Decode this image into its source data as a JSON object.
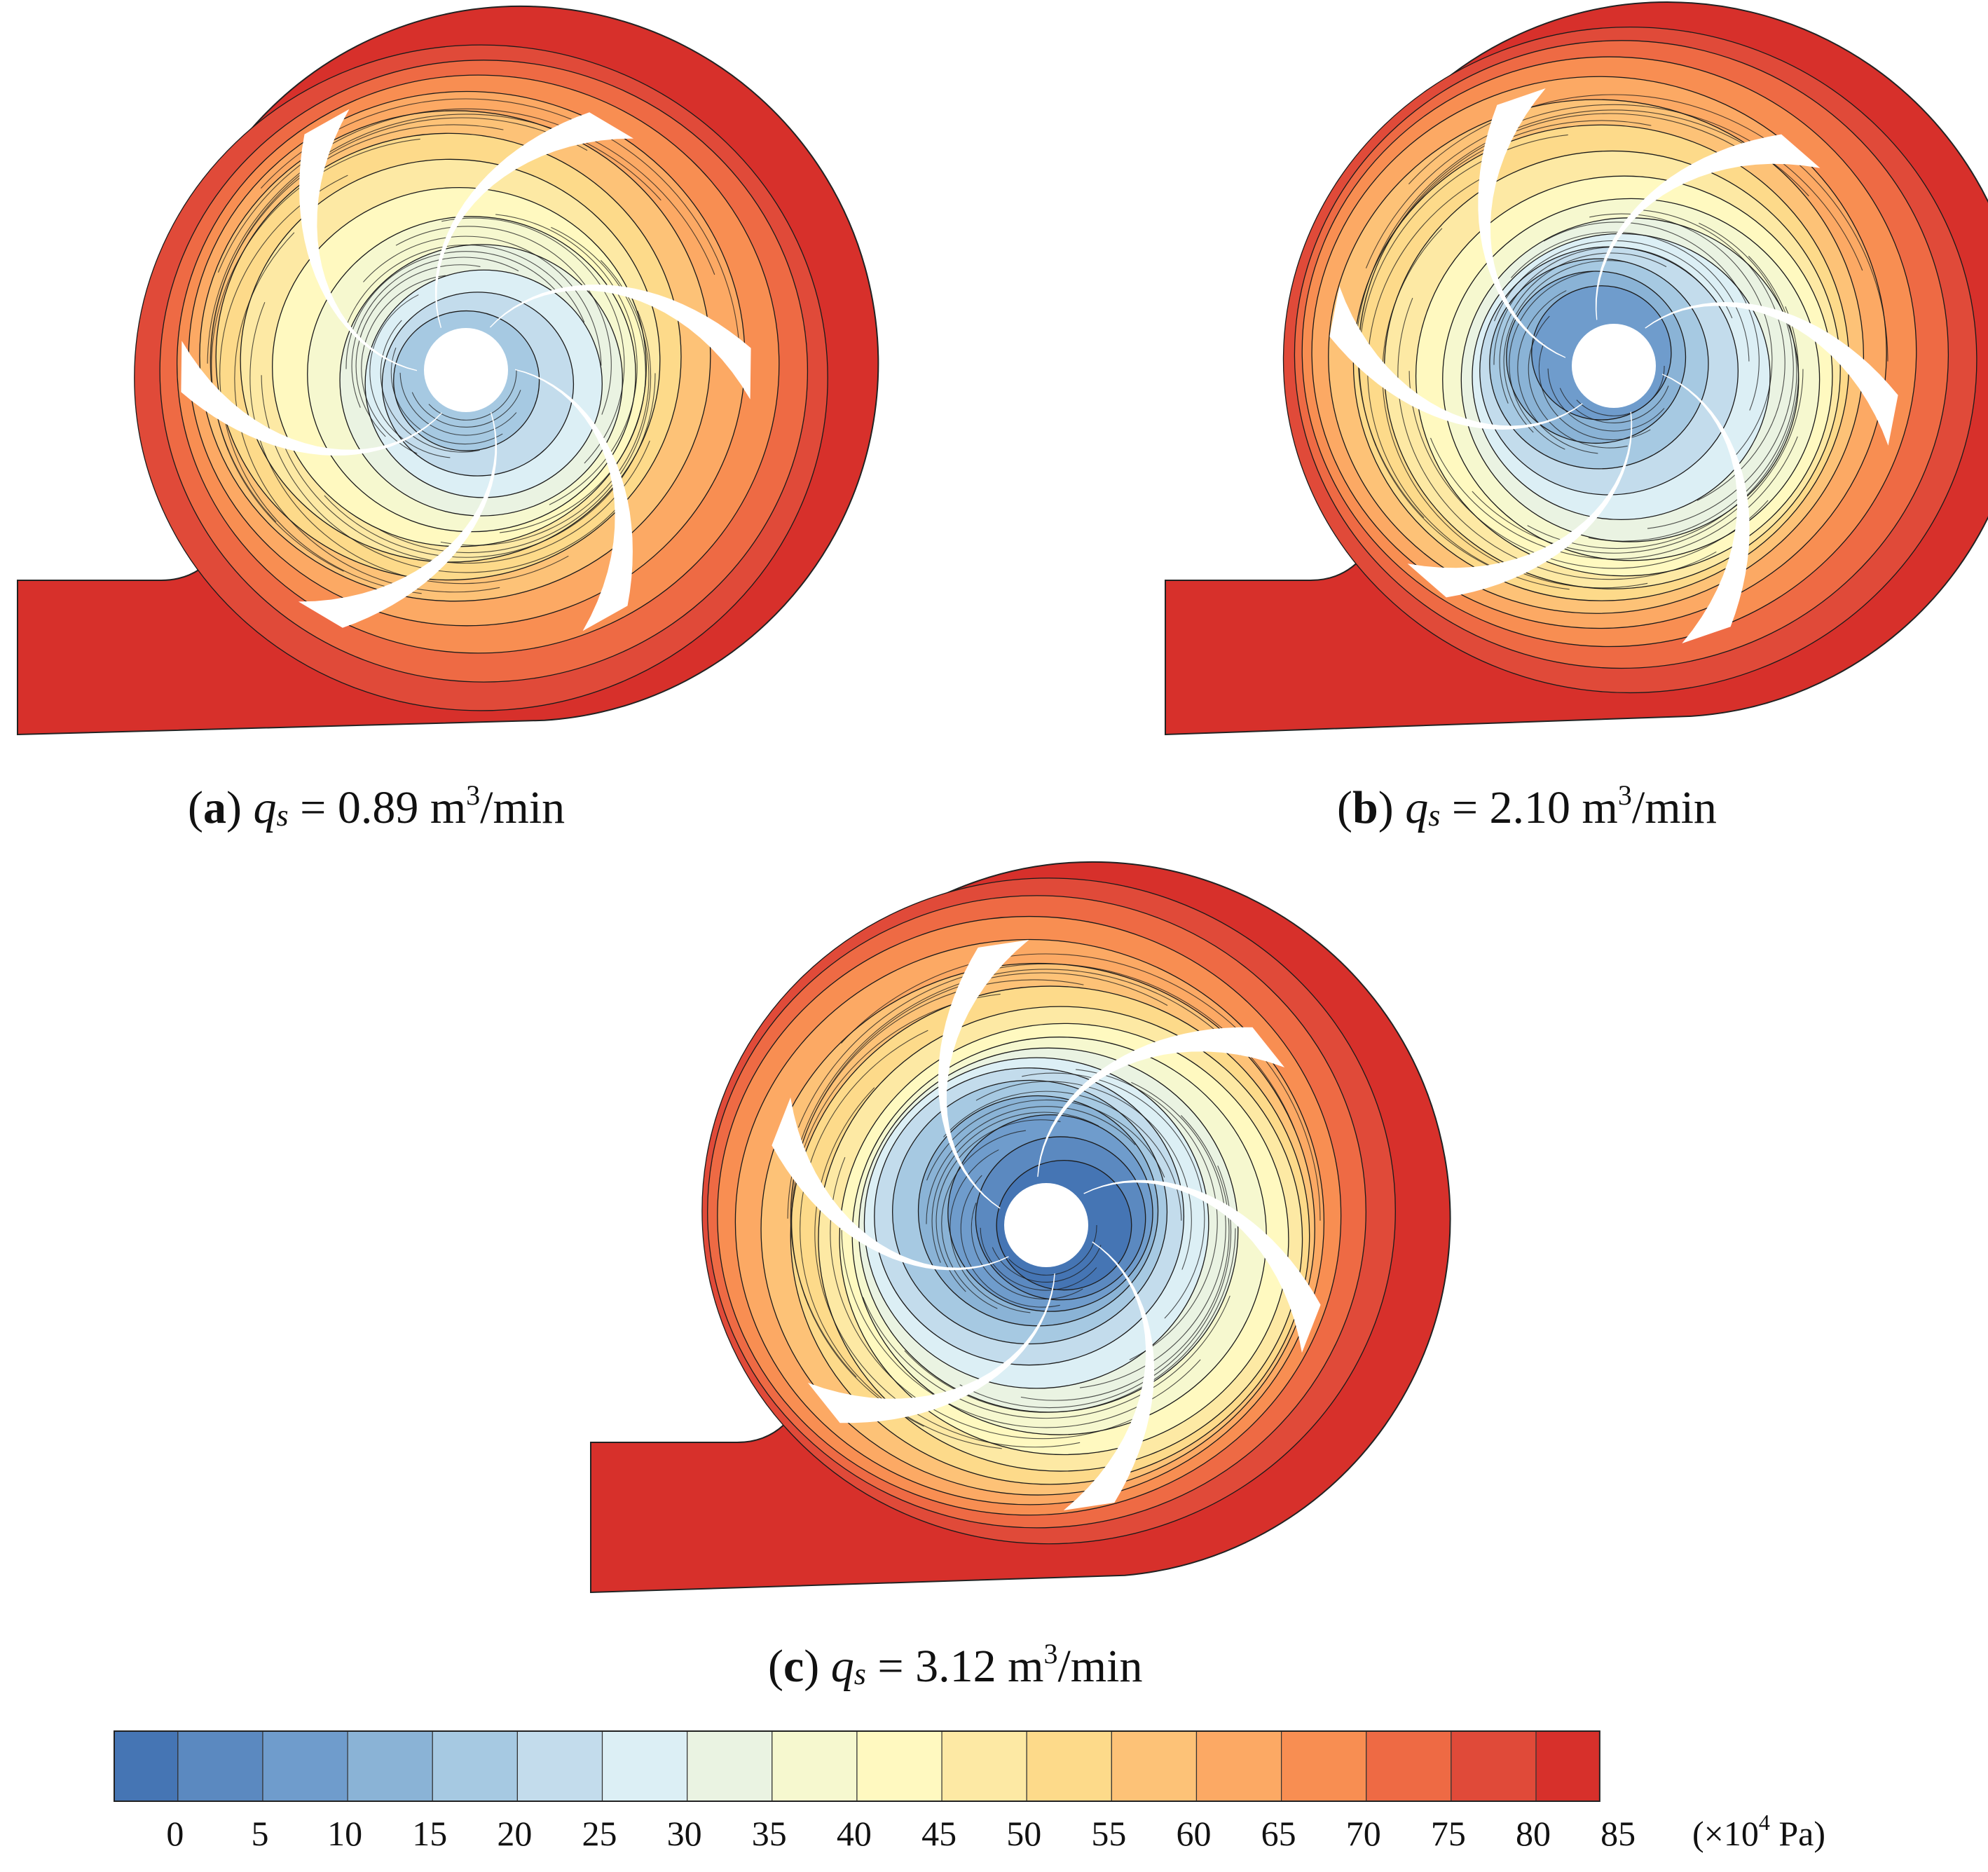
{
  "panels": [
    {
      "id": "a",
      "label": "a",
      "symbol": "q",
      "subscript": "s",
      "value": "0.89",
      "unit": "m",
      "unit_power": "3",
      "unit_rest": "/min"
    },
    {
      "id": "b",
      "label": "b",
      "symbol": "q",
      "subscript": "s",
      "value": "2.10",
      "unit": "m",
      "unit_power": "3",
      "unit_rest": "/min"
    },
    {
      "id": "c",
      "label": "c",
      "symbol": "q",
      "subscript": "s",
      "value": "3.12",
      "unit": "m",
      "unit_power": "3",
      "unit_rest": "/min"
    }
  ],
  "colorbar": {
    "ticks": [
      "0",
      "5",
      "10",
      "15",
      "20",
      "25",
      "30",
      "35",
      "40",
      "45",
      "50",
      "55",
      "60",
      "65",
      "70",
      "75",
      "80",
      "85"
    ],
    "unit_prefix": "(×10",
    "unit_exp": "4",
    "unit_suffix": " Pa)",
    "colors": [
      "#4575b4",
      "#5b89c0",
      "#6f9ccc",
      "#8ab3d6",
      "#a6c9e2",
      "#c3dcec",
      "#dceff5",
      "#eaf3e2",
      "#f6f8cf",
      "#fff9c0",
      "#fde9a4",
      "#fdda8a",
      "#fdc277",
      "#fca964",
      "#f88e52",
      "#ee6a44",
      "#e04a39",
      "#d7302b"
    ]
  }
}
